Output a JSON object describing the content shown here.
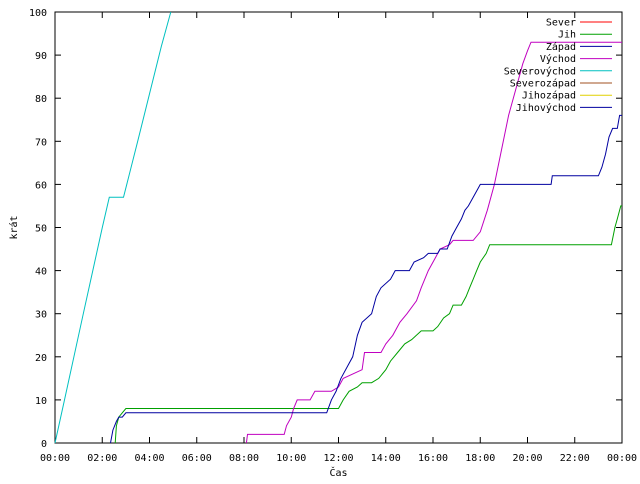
{
  "chart_data": {
    "type": "line",
    "xlabel": "Čas",
    "ylabel": "krát",
    "xlim": [
      0,
      24
    ],
    "ylim": [
      0,
      100
    ],
    "x_ticks": [
      {
        "value": 0,
        "label": "00:00"
      },
      {
        "value": 2,
        "label": "02:00"
      },
      {
        "value": 4,
        "label": "04:00"
      },
      {
        "value": 6,
        "label": "06:00"
      },
      {
        "value": 8,
        "label": "08:00"
      },
      {
        "value": 10,
        "label": "10:00"
      },
      {
        "value": 12,
        "label": "12:00"
      },
      {
        "value": 14,
        "label": "14:00"
      },
      {
        "value": 16,
        "label": "16:00"
      },
      {
        "value": 18,
        "label": "18:00"
      },
      {
        "value": 20,
        "label": "20:00"
      },
      {
        "value": 22,
        "label": "22:00"
      },
      {
        "value": 24,
        "label": "00:00"
      }
    ],
    "y_ticks": [
      0,
      10,
      20,
      30,
      40,
      50,
      60,
      70,
      80,
      90,
      100
    ],
    "grid": false,
    "legend_position": "top-right",
    "series": [
      {
        "name": "Sever",
        "color": "#ff0000",
        "points": []
      },
      {
        "name": "Jih",
        "color": "#00a000",
        "points": [
          [
            2.55,
            0
          ],
          [
            2.6,
            4
          ],
          [
            2.7,
            6
          ],
          [
            2.85,
            7
          ],
          [
            3.0,
            8
          ],
          [
            11.5,
            8
          ],
          [
            12.0,
            8
          ],
          [
            12.2,
            10
          ],
          [
            12.45,
            12
          ],
          [
            12.8,
            13
          ],
          [
            13.0,
            14
          ],
          [
            13.4,
            14
          ],
          [
            13.7,
            15
          ],
          [
            14.0,
            17
          ],
          [
            14.2,
            19
          ],
          [
            14.5,
            21
          ],
          [
            14.8,
            23
          ],
          [
            15.1,
            24
          ],
          [
            15.5,
            26
          ],
          [
            15.8,
            26
          ],
          [
            16.0,
            26
          ],
          [
            16.2,
            27
          ],
          [
            16.45,
            29
          ],
          [
            16.7,
            30
          ],
          [
            16.85,
            32
          ],
          [
            17.2,
            32
          ],
          [
            17.4,
            34
          ],
          [
            17.55,
            36
          ],
          [
            17.7,
            38
          ],
          [
            17.85,
            40
          ],
          [
            18.0,
            42
          ],
          [
            18.25,
            44
          ],
          [
            18.4,
            46
          ],
          [
            19.0,
            46
          ],
          [
            22.0,
            46
          ],
          [
            23.55,
            46
          ],
          [
            23.7,
            50
          ],
          [
            23.8,
            52
          ],
          [
            23.95,
            55
          ],
          [
            24.0,
            55
          ]
        ]
      },
      {
        "name": "Západ",
        "color": "#0000a0",
        "points": []
      },
      {
        "name": "Východ",
        "color": "#c000c0",
        "points": [
          [
            8.1,
            0
          ],
          [
            8.15,
            2
          ],
          [
            9.7,
            2
          ],
          [
            9.8,
            4
          ],
          [
            10.0,
            6
          ],
          [
            10.1,
            8
          ],
          [
            10.25,
            10
          ],
          [
            10.8,
            10
          ],
          [
            11.0,
            12
          ],
          [
            11.7,
            12
          ],
          [
            12.0,
            13
          ],
          [
            12.2,
            15
          ],
          [
            13.0,
            17
          ],
          [
            13.1,
            21
          ],
          [
            13.8,
            21
          ],
          [
            14.0,
            23
          ],
          [
            14.3,
            25
          ],
          [
            14.6,
            28
          ],
          [
            14.9,
            30
          ],
          [
            15.3,
            33
          ],
          [
            15.5,
            36
          ],
          [
            15.8,
            40
          ],
          [
            16.1,
            43
          ],
          [
            16.3,
            45
          ],
          [
            16.7,
            46
          ],
          [
            16.85,
            47
          ],
          [
            17.7,
            47
          ],
          [
            18.0,
            49
          ],
          [
            18.3,
            54
          ],
          [
            18.6,
            60
          ],
          [
            18.9,
            68
          ],
          [
            19.2,
            76
          ],
          [
            19.5,
            82
          ],
          [
            19.8,
            88
          ],
          [
            20.0,
            91
          ],
          [
            20.15,
            93
          ],
          [
            24.0,
            93
          ]
        ]
      },
      {
        "name": "Severovýchod",
        "color": "#00c0c0",
        "points": [
          [
            0.0,
            0
          ],
          [
            0.4,
            10
          ],
          [
            0.8,
            20
          ],
          [
            1.2,
            30
          ],
          [
            1.6,
            40
          ],
          [
            2.0,
            50
          ],
          [
            2.3,
            57
          ],
          [
            2.9,
            57
          ],
          [
            3.5,
            70
          ],
          [
            4.0,
            81
          ],
          [
            4.5,
            92
          ],
          [
            4.9,
            100
          ]
        ]
      },
      {
        "name": "Severozápad",
        "color": "#a05020",
        "points": []
      },
      {
        "name": "Jihozápad",
        "color": "#e0d000",
        "points": []
      },
      {
        "name": "Jihovýchod",
        "color": "#0000a0",
        "points": [
          [
            2.35,
            0
          ],
          [
            2.45,
            3
          ],
          [
            2.6,
            5
          ],
          [
            2.7,
            6
          ],
          [
            2.85,
            6
          ],
          [
            3.0,
            7
          ],
          [
            11.5,
            7
          ],
          [
            11.7,
            10
          ],
          [
            11.9,
            12
          ],
          [
            12.1,
            15
          ],
          [
            12.4,
            18
          ],
          [
            12.6,
            20
          ],
          [
            12.8,
            25
          ],
          [
            13.0,
            28
          ],
          [
            13.4,
            30
          ],
          [
            13.6,
            34
          ],
          [
            13.8,
            36
          ],
          [
            14.2,
            38
          ],
          [
            14.4,
            40
          ],
          [
            15.0,
            40
          ],
          [
            15.2,
            42
          ],
          [
            15.6,
            43
          ],
          [
            15.8,
            44
          ],
          [
            16.2,
            44
          ],
          [
            16.3,
            45
          ],
          [
            16.6,
            45
          ],
          [
            16.8,
            48
          ],
          [
            17.0,
            50
          ],
          [
            17.2,
            52
          ],
          [
            17.35,
            54
          ],
          [
            17.5,
            55
          ],
          [
            17.7,
            57
          ],
          [
            17.9,
            59
          ],
          [
            18.0,
            60
          ],
          [
            21.0,
            60
          ],
          [
            21.05,
            62
          ],
          [
            23.0,
            62
          ],
          [
            23.15,
            64
          ],
          [
            23.3,
            67
          ],
          [
            23.45,
            71
          ],
          [
            23.6,
            73
          ],
          [
            23.8,
            73
          ],
          [
            23.9,
            76
          ],
          [
            24.0,
            76
          ]
        ]
      }
    ]
  }
}
